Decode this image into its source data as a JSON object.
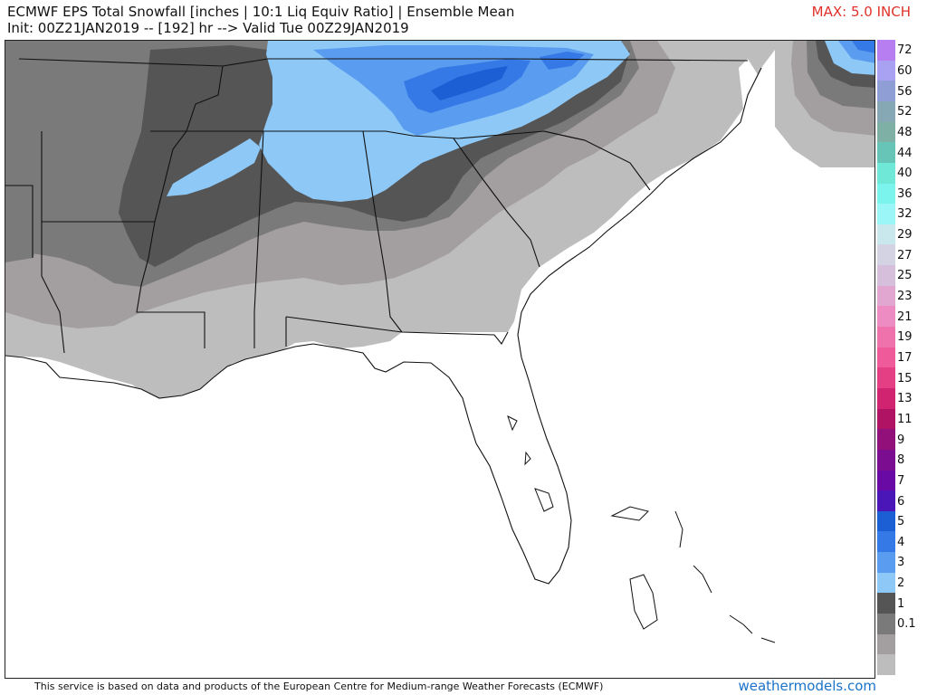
{
  "header": {
    "title_line1": "ECMWF EPS Total Snowfall [inches | 10:1 Liq Equiv Ratio] | Ensemble Mean",
    "title_line2": "Init: 00Z21JAN2019 -- [192] hr --> Valid Tue 00Z29JAN2019",
    "max_label": "MAX: 5.0 INCH"
  },
  "legend": {
    "units": "inches",
    "levels": [
      {
        "label": "72",
        "color": "#b77ef1"
      },
      {
        "label": "60",
        "color": "#a9a1f2"
      },
      {
        "label": "56",
        "color": "#8f9fd6"
      },
      {
        "label": "52",
        "color": "#86a8b5"
      },
      {
        "label": "48",
        "color": "#7fb0a6"
      },
      {
        "label": "44",
        "color": "#67c5b7"
      },
      {
        "label": "40",
        "color": "#6fe8d8"
      },
      {
        "label": "36",
        "color": "#7bf4ee"
      },
      {
        "label": "32",
        "color": "#9bf7f7"
      },
      {
        "label": "29",
        "color": "#c8e8ed"
      },
      {
        "label": "27",
        "color": "#d3d3e3"
      },
      {
        "label": "25",
        "color": "#d6bfdb"
      },
      {
        "label": "23",
        "color": "#e1a7d0"
      },
      {
        "label": "21",
        "color": "#ec8cc3"
      },
      {
        "label": "19",
        "color": "#f072ad"
      },
      {
        "label": "17",
        "color": "#ee5a9a"
      },
      {
        "label": "15",
        "color": "#e43e84"
      },
      {
        "label": "13",
        "color": "#d02471"
      },
      {
        "label": "11",
        "color": "#b11364"
      },
      {
        "label": "9",
        "color": "#921079"
      },
      {
        "label": "8",
        "color": "#7b0d91"
      },
      {
        "label": "7",
        "color": "#6a0aa4"
      },
      {
        "label": "6",
        "color": "#4b16b8"
      },
      {
        "label": "5",
        "color": "#1c5fd5"
      },
      {
        "label": "4",
        "color": "#3579e6"
      },
      {
        "label": "3",
        "color": "#5a9cf0"
      },
      {
        "label": "2",
        "color": "#8ec8f6"
      },
      {
        "label": "1",
        "color": "#555555"
      },
      {
        "label": "0.1",
        "color": "#7a7a7a"
      }
    ],
    "extra_bands": [
      "#a39e9f",
      "#bdbdbd"
    ]
  },
  "map": {
    "region": "Southeastern United States",
    "colors": {
      "ocean": "#ffffff",
      "light_gray": "#bdbdbd",
      "medium_gray": "#a39e9f",
      "dark_gray": "#7a7a7a",
      "darkest_gray": "#555555",
      "light_blue": "#8ec8f6",
      "mid_blue": "#5a9cf0",
      "blue": "#3579e6",
      "deep_blue": "#1c5fd5",
      "borders": "#111111"
    }
  },
  "footer": {
    "disclaimer": "This service is based on data and products of the European Centre for Medium-range Weather Forecasts (ECMWF)",
    "brand": "weathermodels.com"
  }
}
